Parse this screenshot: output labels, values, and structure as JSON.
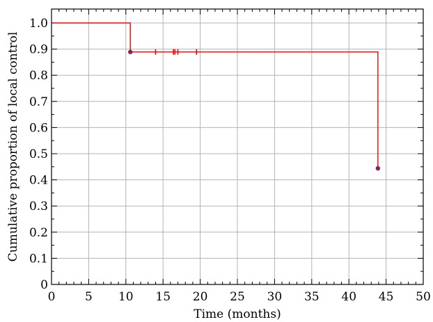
{
  "chart_data": {
    "type": "line",
    "title": "",
    "xlabel": "Time (months)",
    "ylabel": "Cumulative proportion of local control",
    "xlim": [
      0,
      50
    ],
    "ylim": [
      0,
      1.05
    ],
    "x_ticks": [
      0,
      5,
      10,
      15,
      20,
      25,
      30,
      35,
      40,
      45,
      50
    ],
    "y_ticks": [
      0,
      0.1,
      0.2,
      0.3,
      0.4,
      0.5,
      0.6,
      0.7,
      0.8,
      0.9,
      1.0
    ],
    "x_tick_labels": [
      "0",
      "5",
      "10",
      "15",
      "20",
      "25",
      "30",
      "35",
      "40",
      "45",
      "50"
    ],
    "y_tick_labels": [
      "0",
      "0.1",
      "0.2",
      "0.3",
      "0.4",
      "0.5",
      "0.6",
      "0.7",
      "0.8",
      "0.9",
      "1.0"
    ],
    "grid": true,
    "series": [
      {
        "curve_type": "kaplan-meier step",
        "color": "#ff0000",
        "steps": [
          {
            "x": 0,
            "y": 1.0
          },
          {
            "x": 10.6,
            "y": 0.889
          },
          {
            "x": 43.9,
            "y": 0.444
          }
        ],
        "events": [
          {
            "x": 10.6,
            "y": 0.889
          },
          {
            "x": 43.9,
            "y": 0.444
          }
        ],
        "event_marker_color": "#3a3a9a",
        "censored": [
          {
            "x": 14.0,
            "y": 0.889
          },
          {
            "x": 16.4,
            "y": 0.889
          },
          {
            "x": 16.6,
            "y": 0.889
          },
          {
            "x": 17.0,
            "y": 0.889
          },
          {
            "x": 19.5,
            "y": 0.889
          }
        ]
      }
    ]
  }
}
